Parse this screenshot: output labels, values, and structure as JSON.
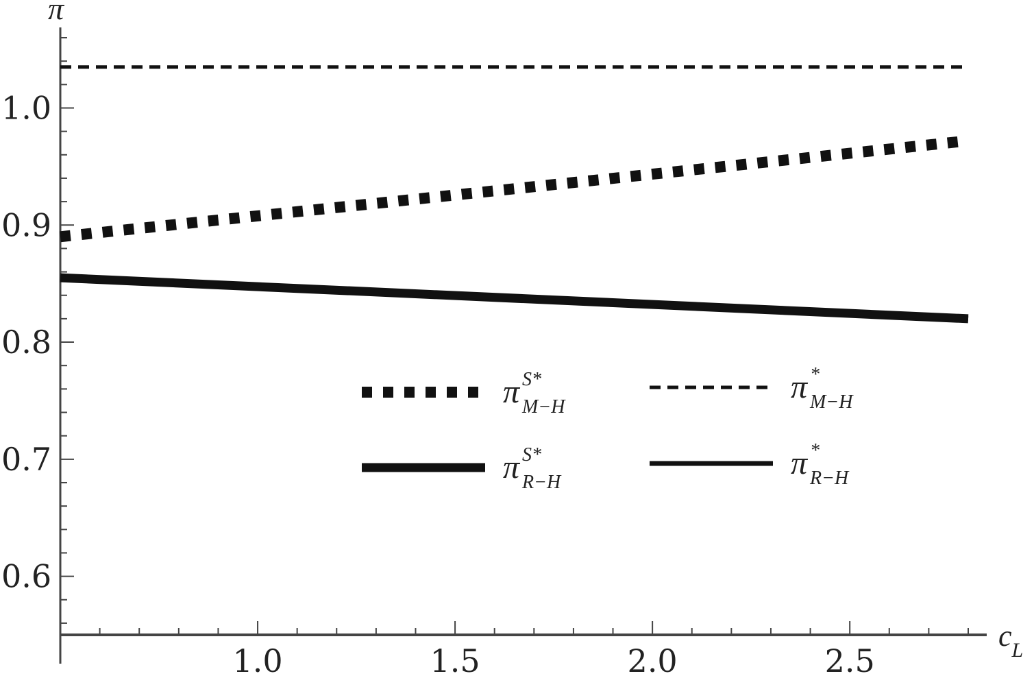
{
  "chart_data": {
    "type": "line",
    "title": "",
    "xlabel": {
      "base": "c",
      "sub": "L"
    },
    "ylabel": "π",
    "xlim": [
      0.5,
      2.8
    ],
    "ylim": [
      0.55,
      1.06
    ],
    "xticks": [
      1.0,
      1.5,
      2.0,
      2.5
    ],
    "xtick_labels": [
      "1.0",
      "1.5",
      "2.0",
      "2.5"
    ],
    "yticks": [
      0.6,
      0.7,
      0.8,
      0.9,
      1.0
    ],
    "ytick_labels": [
      "0.6",
      "0.7",
      "0.8",
      "0.9",
      "1.0"
    ],
    "grid": false,
    "legend_position": "center",
    "series": [
      {
        "id": "pi_s_mh",
        "name": "π^{S*}_{M−H}",
        "legend": {
          "base": "π",
          "sup": "S*",
          "sub": "M−H"
        },
        "style": "thick-dotted",
        "color": "#111111",
        "x": [
          0.5,
          2.8
        ],
        "y": [
          0.89,
          0.972
        ]
      },
      {
        "id": "pi_mh",
        "name": "π^{*}_{M−H}",
        "legend": {
          "base": "π",
          "sup": "*",
          "sub": "M−H"
        },
        "style": "thin-dashed",
        "color": "#111111",
        "x": [
          0.5,
          2.8
        ],
        "y": [
          1.035,
          1.035
        ]
      },
      {
        "id": "pi_s_rh",
        "name": "π^{S*}_{R−H}",
        "legend": {
          "base": "π",
          "sup": "S*",
          "sub": "R−H"
        },
        "style": "thick-solid",
        "color": "#111111",
        "x": [
          0.5,
          2.8
        ],
        "y": [
          0.855,
          0.82
        ]
      },
      {
        "id": "pi_rh",
        "name": "π^{*}_{R−H}",
        "legend": {
          "base": "π",
          "sup": "*",
          "sub": "R−H"
        },
        "style": "solid",
        "color": "#111111",
        "x": [
          0.5,
          2.8
        ],
        "y": [
          0.855,
          0.82
        ]
      }
    ]
  }
}
